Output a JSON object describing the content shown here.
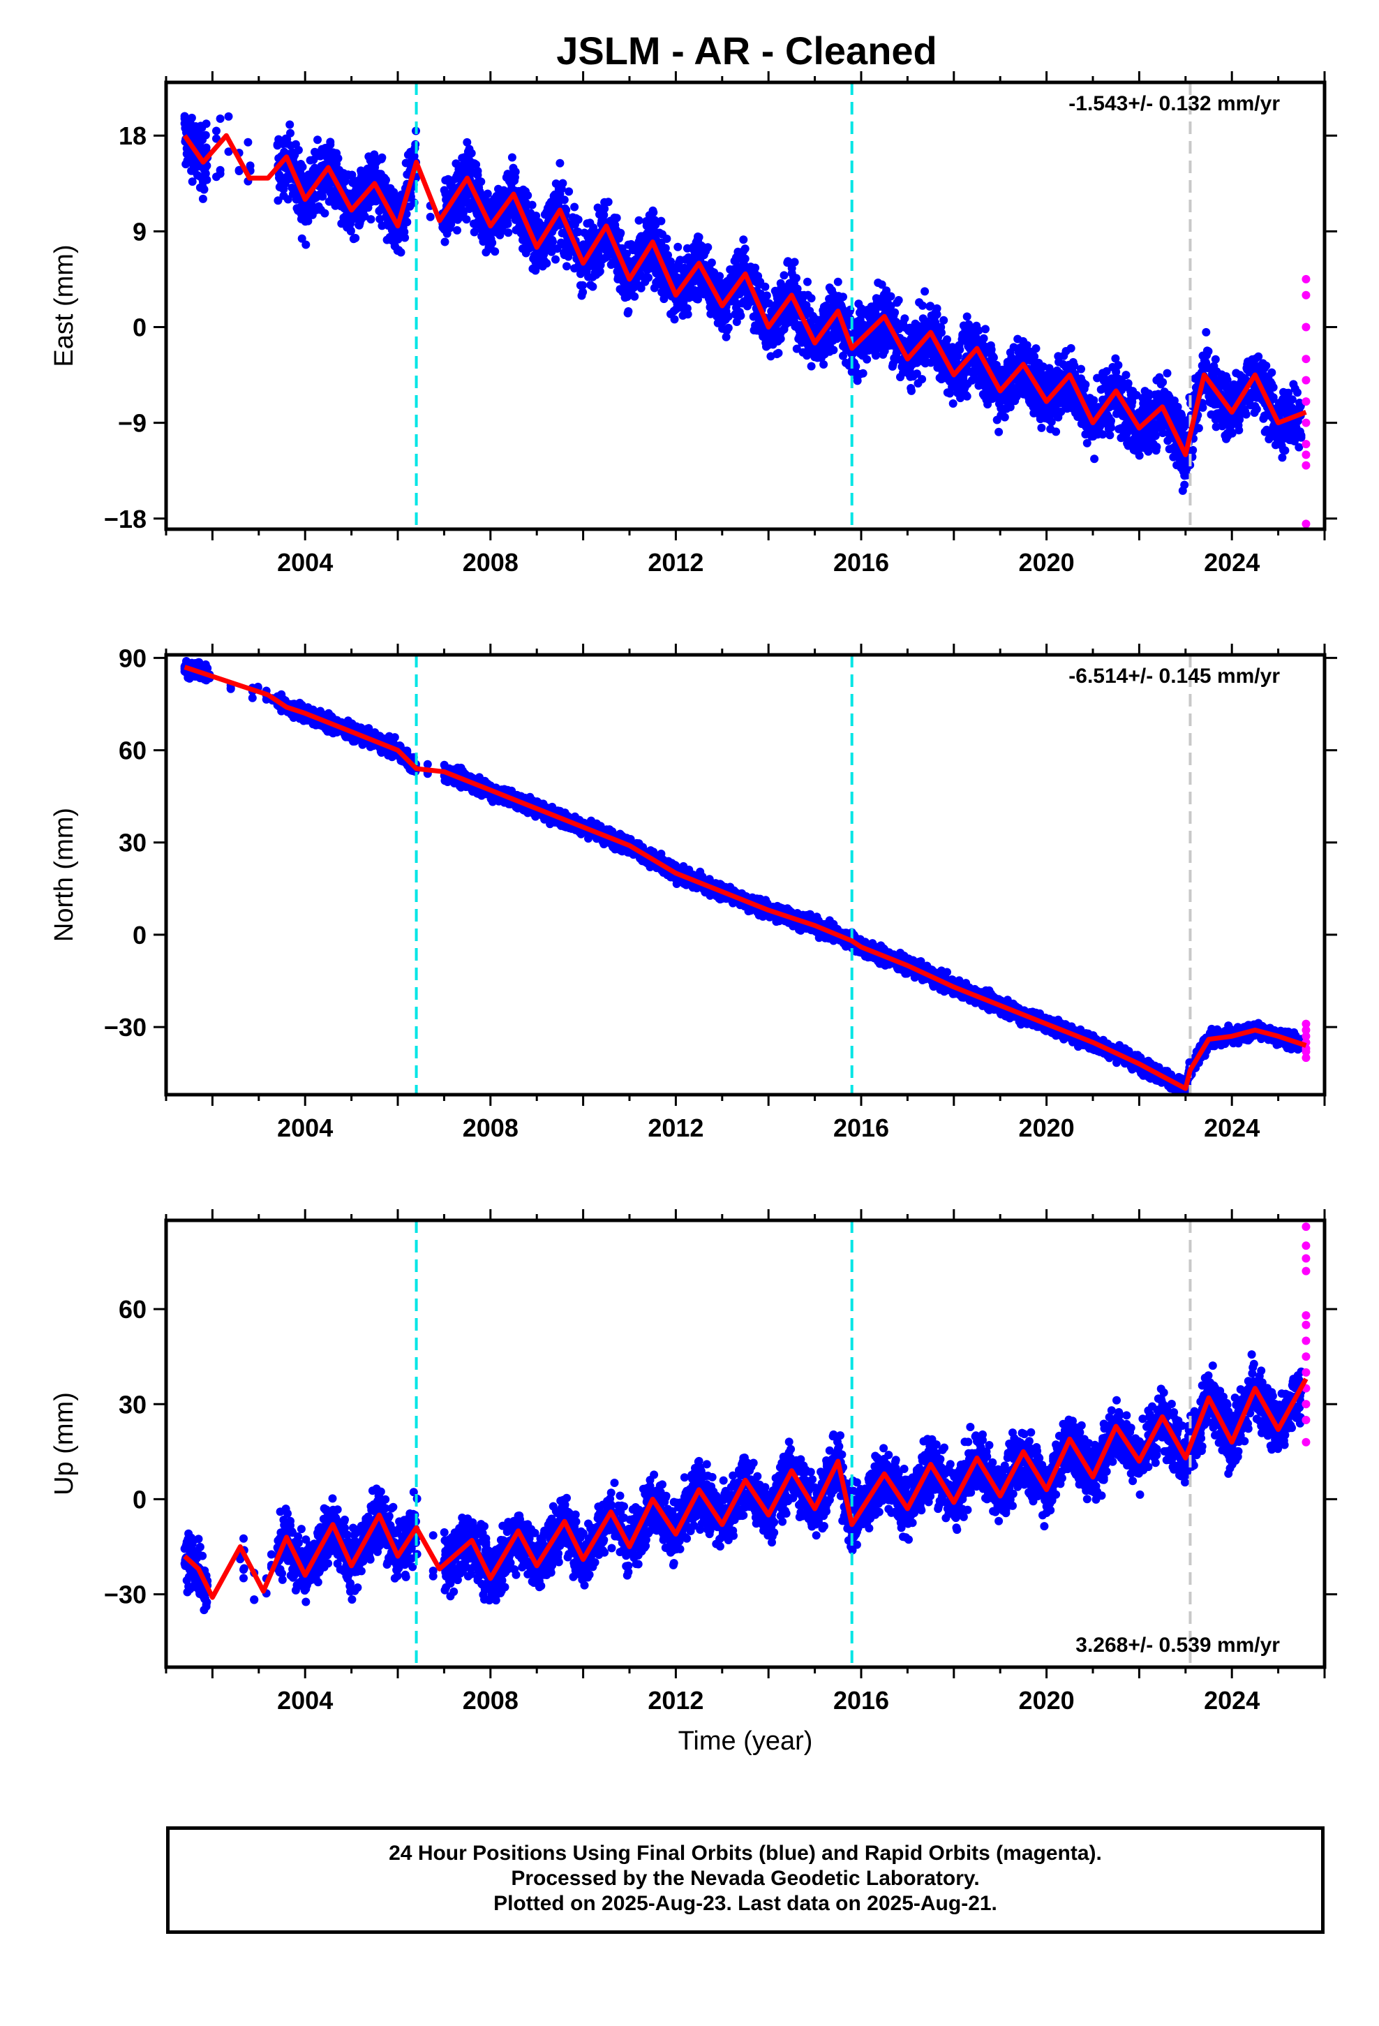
{
  "title": "JSLM  - AR - Cleaned",
  "caption": [
    "24 Hour Positions Using Final Orbits (blue) and Rapid Orbits (magenta).",
    "Processed by the Nevada Geodetic Laboratory.",
    "Plotted on 2025-Aug-23. Last data on 2025-Aug-21."
  ],
  "colors": {
    "final_orbits": "#0000ff",
    "rapid_orbits": "#ff00ff",
    "model": "#ff0000",
    "equipment_change": "#00e5e5",
    "other_event": "#c8c8c8"
  },
  "chart_data": [
    {
      "type": "scatter",
      "ylabel": "East (mm)",
      "xlabel": "",
      "xlim": [
        2001.0,
        2026.0
      ],
      "ylim": [
        -19,
        23
      ],
      "xticks": [
        2004,
        2008,
        2012,
        2016,
        2020,
        2024
      ],
      "yticks": [
        18,
        9,
        0,
        -9,
        -18
      ],
      "ytick_labels": [
        "18",
        "9",
        "0",
        "−9",
        "−18"
      ],
      "rate": "-1.543+/- 0.132 mm/yr",
      "rate_position": "top-right",
      "event_lines": [
        {
          "x": 2006.4,
          "kind": "equipment_change"
        },
        {
          "x": 2015.8,
          "kind": "equipment_change"
        },
        {
          "x": 2023.1,
          "kind": "other_event"
        }
      ],
      "model": {
        "x": [
          2001.4,
          2001.8,
          2002.3,
          2002.8,
          2003.2,
          2003.6,
          2004.0,
          2004.5,
          2005.0,
          2005.5,
          2006.0,
          2006.4,
          2006.9,
          2007.5,
          2008.0,
          2008.5,
          2009.0,
          2009.5,
          2010.0,
          2010.5,
          2011.0,
          2011.5,
          2012.0,
          2012.5,
          2013.0,
          2013.5,
          2014.0,
          2014.5,
          2015.0,
          2015.5,
          2015.8,
          2016.5,
          2017.0,
          2017.5,
          2018.0,
          2018.5,
          2019.0,
          2019.5,
          2020.0,
          2020.5,
          2021.0,
          2021.5,
          2022.0,
          2022.5,
          2023.0,
          2023.4,
          2024.0,
          2024.5,
          2025.0,
          2025.6
        ],
        "y": [
          18,
          15.5,
          18,
          14,
          14,
          16,
          12,
          15,
          11,
          13.5,
          9.5,
          15.5,
          10,
          14,
          9.5,
          12.5,
          7.5,
          11,
          6,
          9.5,
          4.5,
          8,
          3,
          6,
          2,
          5,
          0,
          3,
          -1.5,
          1.5,
          -2,
          1,
          -3,
          -0.5,
          -4.5,
          -2,
          -6,
          -3.5,
          -7,
          -4.5,
          -9,
          -6,
          -9.5,
          -7.5,
          -12,
          -4.5,
          -8,
          -4.5,
          -9,
          -8
        ]
      },
      "rapid_points": {
        "x": 2025.6,
        "y": [
          4.5,
          3,
          0,
          -3,
          -5,
          -7,
          -9,
          -11,
          -12,
          -13,
          -18.5
        ]
      }
    },
    {
      "type": "scatter",
      "ylabel": "North (mm)",
      "xlabel": "",
      "xlim": [
        2001.0,
        2026.0
      ],
      "ylim": [
        -52,
        91
      ],
      "xticks": [
        2004,
        2008,
        2012,
        2016,
        2020,
        2024
      ],
      "yticks": [
        90,
        60,
        30,
        0,
        -30
      ],
      "ytick_labels": [
        "90",
        "60",
        "30",
        "0",
        "−30"
      ],
      "rate": "-6.514+/- 0.145 mm/yr",
      "rate_position": "top-right",
      "event_lines": [
        {
          "x": 2006.4,
          "kind": "equipment_change"
        },
        {
          "x": 2015.8,
          "kind": "equipment_change"
        },
        {
          "x": 2023.1,
          "kind": "other_event"
        }
      ],
      "model": {
        "x": [
          2001.4,
          2002.0,
          2002.6,
          2003.2,
          2003.6,
          2004.0,
          2005.0,
          2006.0,
          2006.4,
          2007.0,
          2008.0,
          2009.0,
          2010.0,
          2011.0,
          2012.0,
          2013.0,
          2014.0,
          2015.0,
          2015.8,
          2016.0,
          2017.0,
          2018.0,
          2019.0,
          2020.0,
          2021.0,
          2022.0,
          2022.5,
          2023.0,
          2023.1,
          2023.5,
          2024.0,
          2024.5,
          2025.0,
          2025.6
        ],
        "y": [
          87,
          84,
          81,
          78,
          74,
          72,
          66,
          60,
          54,
          53,
          47,
          41,
          35,
          29,
          20,
          14,
          8,
          3,
          -2,
          -4,
          -10,
          -17,
          -23,
          -29,
          -35,
          -42,
          -46,
          -50,
          -44,
          -34,
          -33,
          -31,
          -33,
          -36
        ]
      },
      "rapid_points": {
        "x": 2025.6,
        "y": [
          -29,
          -31,
          -33,
          -35,
          -37,
          -38,
          -40
        ]
      }
    },
    {
      "type": "scatter",
      "ylabel": "Up (mm)",
      "xlabel": "Time (year)",
      "xlim": [
        2001.0,
        2026.0
      ],
      "ylim": [
        -53,
        88
      ],
      "xticks": [
        2004,
        2008,
        2012,
        2016,
        2020,
        2024
      ],
      "yticks": [
        60,
        30,
        0,
        -30
      ],
      "ytick_labels": [
        "60",
        "30",
        "0",
        "−30"
      ],
      "rate": "3.268+/- 0.539 mm/yr",
      "rate_position": "bottom-right",
      "event_lines": [
        {
          "x": 2006.4,
          "kind": "equipment_change"
        },
        {
          "x": 2015.8,
          "kind": "equipment_change"
        },
        {
          "x": 2023.1,
          "kind": "other_event"
        }
      ],
      "model": {
        "x": [
          2001.4,
          2001.7,
          2002.0,
          2002.6,
          2003.1,
          2003.6,
          2004.0,
          2004.6,
          2005.0,
          2005.6,
          2006.0,
          2006.4,
          2006.9,
          2007.6,
          2008.0,
          2008.6,
          2009.0,
          2009.6,
          2010.0,
          2010.6,
          2011.0,
          2011.5,
          2012.0,
          2012.5,
          2013.0,
          2013.5,
          2014.0,
          2014.5,
          2015.0,
          2015.5,
          2015.8,
          2016.5,
          2017.0,
          2017.5,
          2018.0,
          2018.5,
          2019.0,
          2019.5,
          2020.0,
          2020.5,
          2021.0,
          2021.5,
          2022.0,
          2022.5,
          2023.0,
          2023.5,
          2024.0,
          2024.5,
          2025.0,
          2025.6
        ],
        "y": [
          -18,
          -22,
          -31,
          -15,
          -29,
          -12,
          -24,
          -8,
          -21,
          -5,
          -18,
          -9,
          -22,
          -13,
          -25,
          -10,
          -21,
          -7,
          -19,
          -4,
          -15,
          0,
          -11,
          3,
          -8,
          6,
          -5,
          9,
          -3,
          12,
          -8,
          8,
          -3,
          11,
          -1,
          13,
          1,
          15,
          3,
          19,
          7,
          23,
          12,
          26,
          13,
          32,
          18,
          35,
          22,
          38
        ]
      },
      "rapid_points": {
        "x": 2025.6,
        "y": [
          86,
          80,
          76,
          72,
          58,
          55,
          50,
          45,
          40,
          35,
          30,
          25,
          18
        ]
      }
    }
  ]
}
